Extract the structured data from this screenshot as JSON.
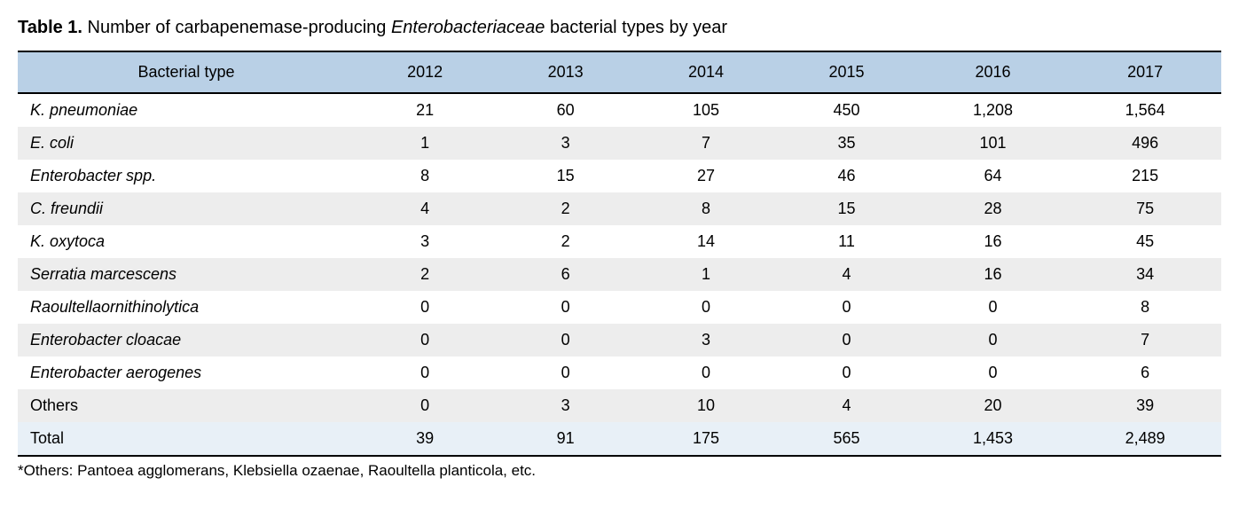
{
  "title": {
    "label_prefix": "Table 1.",
    "text_before_italic": " Number of carbapenemase-producing ",
    "italic_word": "Enterobacteriaceae",
    "text_after_italic": " bacterial types by year"
  },
  "table": {
    "header_bg": "#b9d0e6",
    "row_even_bg": "#ededed",
    "row_odd_bg": "#ffffff",
    "total_bg": "#e8f0f7",
    "border_color": "#000000",
    "columns": [
      "Bacterial type",
      "2012",
      "2013",
      "2014",
      "2015",
      "2016",
      "2017"
    ],
    "rows": [
      {
        "label": "K. pneumoniae",
        "italic": true,
        "values": [
          "21",
          "60",
          "105",
          "450",
          "1,208",
          "1,564"
        ]
      },
      {
        "label": "E. coli",
        "italic": true,
        "values": [
          "1",
          "3",
          "7",
          "35",
          "101",
          "496"
        ]
      },
      {
        "label": "Enterobacter spp.",
        "italic": true,
        "values": [
          "8",
          "15",
          "27",
          "46",
          "64",
          "215"
        ]
      },
      {
        "label": "C. freundii",
        "italic": true,
        "values": [
          "4",
          "2",
          "8",
          "15",
          "28",
          "75"
        ]
      },
      {
        "label": "K. oxytoca",
        "italic": true,
        "values": [
          "3",
          "2",
          "14",
          "11",
          "16",
          "45"
        ]
      },
      {
        "label": "Serratia marcescens",
        "italic": true,
        "values": [
          "2",
          "6",
          "1",
          "4",
          "16",
          "34"
        ]
      },
      {
        "label": "Raoultellaornithinolytica",
        "italic": true,
        "values": [
          "0",
          "0",
          "0",
          "0",
          "0",
          "8"
        ]
      },
      {
        "label": "Enterobacter cloacae",
        "italic": true,
        "values": [
          "0",
          "0",
          "3",
          "0",
          "0",
          "7"
        ]
      },
      {
        "label": "Enterobacter aerogenes",
        "italic": true,
        "values": [
          "0",
          "0",
          "0",
          "0",
          "0",
          "6"
        ]
      },
      {
        "label": "Others",
        "italic": false,
        "values": [
          "0",
          "3",
          "10",
          "4",
          "20",
          "39"
        ]
      }
    ],
    "total": {
      "label": "Total",
      "values": [
        "39",
        "91",
        "175",
        "565",
        "1,453",
        "2,489"
      ]
    }
  },
  "footnote": "*Others: Pantoea agglomerans, Klebsiella ozaenae, Raoultella planticola, etc."
}
